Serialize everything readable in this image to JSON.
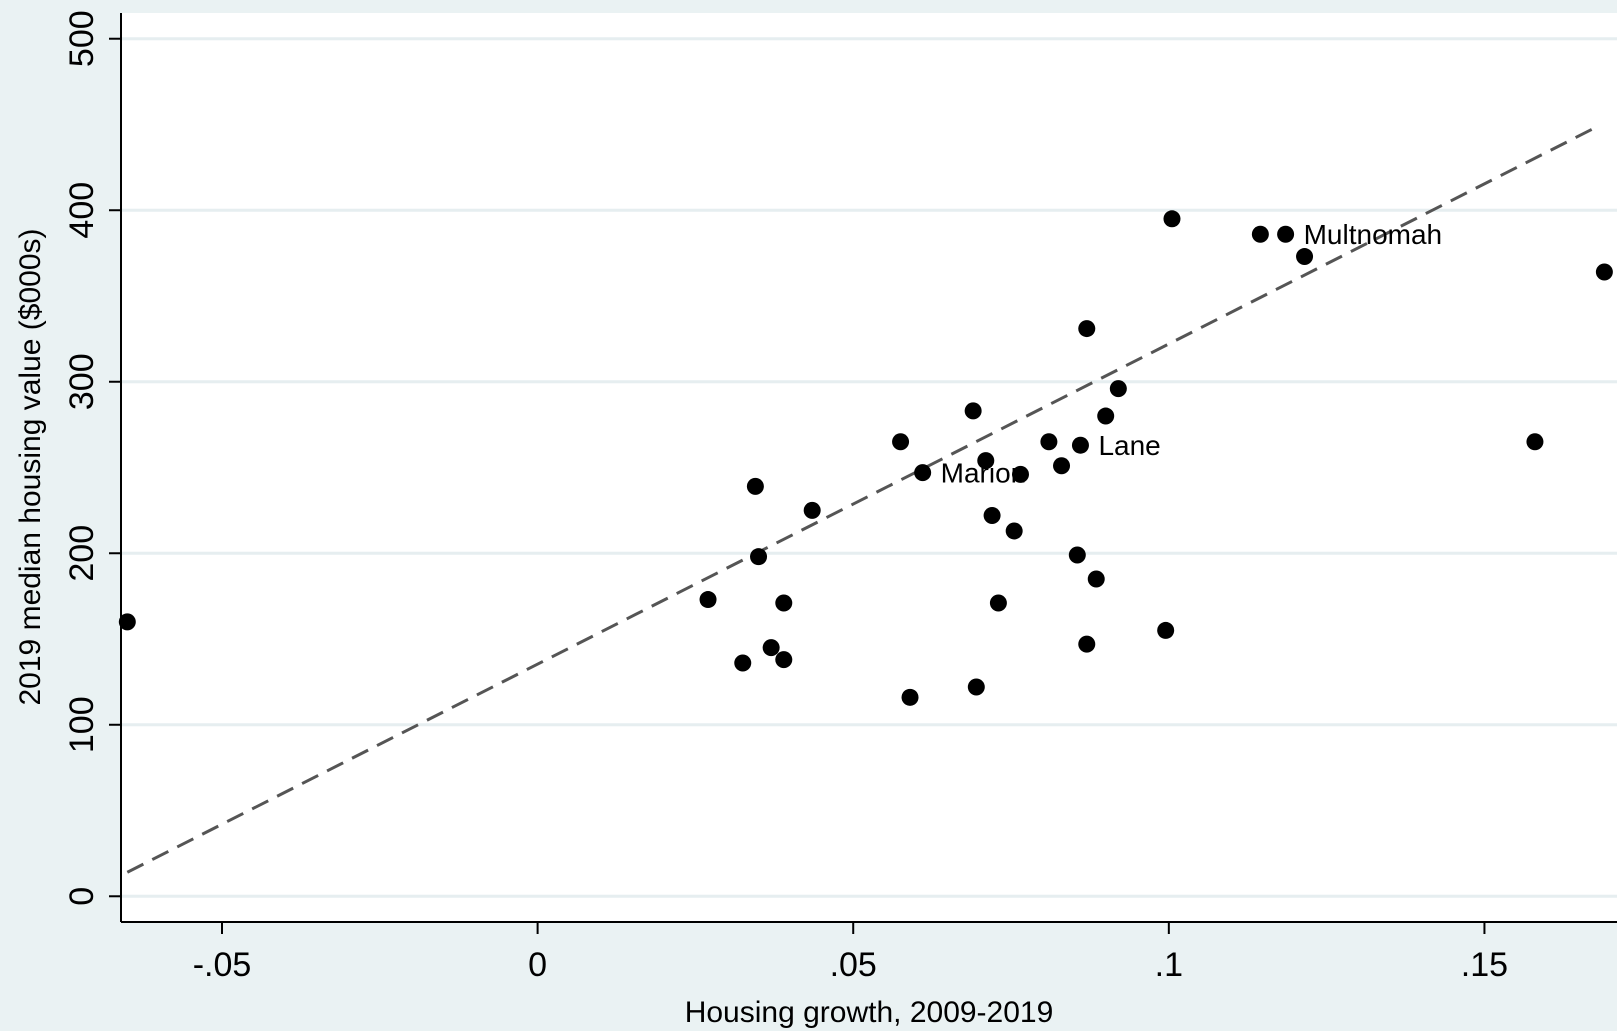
{
  "chart_data": {
    "type": "scatter",
    "title": "",
    "xlabel": "Housing growth, 2009-2019",
    "ylabel": "2019 median housing value ($000s)",
    "xlim": [
      -0.066,
      0.171
    ],
    "ylim": [
      -15,
      515
    ],
    "xticks": [
      -0.05,
      0,
      0.05,
      0.1,
      0.15
    ],
    "xtick_labels": [
      "-.05",
      "0",
      ".05",
      ".1",
      ".15"
    ],
    "yticks": [
      0,
      100,
      200,
      300,
      400,
      500
    ],
    "ytick_labels": [
      "0",
      "100",
      "200",
      "300",
      "400",
      "500"
    ],
    "grid": true,
    "colors": {
      "background": "#eaf2f3",
      "plot_bg": "#ffffff",
      "grid": "#e6eef0",
      "point": "#000000",
      "fit_line": "#555555",
      "title": "#1a2e5a"
    },
    "points": [
      {
        "x": -0.065,
        "y": 160
      },
      {
        "x": 0.027,
        "y": 173
      },
      {
        "x": 0.0325,
        "y": 136
      },
      {
        "x": 0.0345,
        "y": 239
      },
      {
        "x": 0.035,
        "y": 198
      },
      {
        "x": 0.037,
        "y": 145
      },
      {
        "x": 0.039,
        "y": 171
      },
      {
        "x": 0.039,
        "y": 138
      },
      {
        "x": 0.0435,
        "y": 225
      },
      {
        "x": 0.0575,
        "y": 265
      },
      {
        "x": 0.059,
        "y": 116
      },
      {
        "x": 0.061,
        "y": 247,
        "label": "Marion"
      },
      {
        "x": 0.069,
        "y": 283
      },
      {
        "x": 0.0695,
        "y": 122
      },
      {
        "x": 0.071,
        "y": 254
      },
      {
        "x": 0.072,
        "y": 222
      },
      {
        "x": 0.073,
        "y": 171
      },
      {
        "x": 0.0755,
        "y": 213
      },
      {
        "x": 0.0765,
        "y": 246
      },
      {
        "x": 0.081,
        "y": 265
      },
      {
        "x": 0.083,
        "y": 251
      },
      {
        "x": 0.0855,
        "y": 199
      },
      {
        "x": 0.086,
        "y": 263,
        "label": "Lane"
      },
      {
        "x": 0.087,
        "y": 147
      },
      {
        "x": 0.087,
        "y": 331
      },
      {
        "x": 0.0885,
        "y": 185
      },
      {
        "x": 0.09,
        "y": 280
      },
      {
        "x": 0.092,
        "y": 296
      },
      {
        "x": 0.0995,
        "y": 155
      },
      {
        "x": 0.1005,
        "y": 395
      },
      {
        "x": 0.1145,
        "y": 386
      },
      {
        "x": 0.1185,
        "y": 386,
        "label": "Multnomah"
      },
      {
        "x": 0.1215,
        "y": 373
      },
      {
        "x": 0.158,
        "y": 265
      },
      {
        "x": 0.169,
        "y": 364
      }
    ],
    "fit_line": {
      "x": [
        -0.065,
        0.168
      ],
      "y": [
        14,
        449
      ],
      "style": "dashed"
    }
  }
}
